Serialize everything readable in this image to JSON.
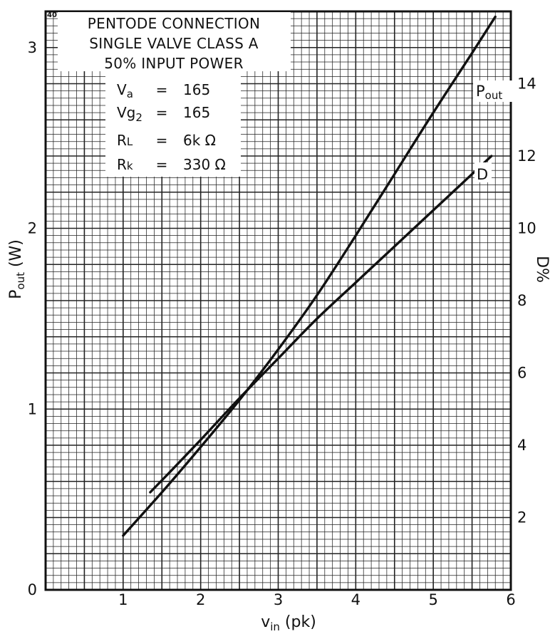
{
  "chart_data": {
    "type": "line",
    "corner_label": "40",
    "xlabel": "v",
    "xlabel_sub": "in",
    "xlabel_suffix": " (pk)",
    "ylabel_left": "P",
    "ylabel_left_sub": "out",
    "ylabel_left_suffix": " (W)",
    "ylabel_right": "D%",
    "xlim": [
      0,
      6
    ],
    "ylim_left": [
      0,
      3.2
    ],
    "ylim_right": [
      0,
      16
    ],
    "xticks": [
      "1",
      "2",
      "3",
      "4",
      "5",
      "6"
    ],
    "yticks_left": [
      "0",
      "1",
      "2",
      "3"
    ],
    "yticks_right": [
      "2",
      "4",
      "6",
      "8",
      "10",
      "12",
      "14"
    ],
    "grid": true,
    "info_box": {
      "heading": [
        "PENTODE CONNECTION",
        "SINGLE VALVE CLASS A",
        "50% INPUT POWER"
      ],
      "params": [
        {
          "name": "V",
          "sub": "a",
          "eq": "=",
          "value": "165"
        },
        {
          "name": "Vg",
          "sub": "2",
          "eq": "=",
          "value": "165"
        },
        {
          "name": "R",
          "sub": "L",
          "eq": "=",
          "value": "6k Ω"
        },
        {
          "name": "R",
          "sub": "k",
          "eq": "=",
          "value": "330 Ω"
        }
      ]
    },
    "series": [
      {
        "name": "P",
        "name_sub": "out",
        "axis": "left",
        "x": [
          1.0,
          1.5,
          2.0,
          2.5,
          3.0,
          3.5,
          4.0,
          4.5,
          5.0,
          5.5,
          5.8
        ],
        "y": [
          0.3,
          0.54,
          0.79,
          1.05,
          1.33,
          1.63,
          1.96,
          2.3,
          2.64,
          2.97,
          3.17
        ]
      },
      {
        "name": "D",
        "axis": "right",
        "x": [
          1.35,
          1.6,
          2.0,
          2.5,
          3.0,
          3.5,
          4.0,
          4.5,
          5.0,
          5.5,
          5.75
        ],
        "y": [
          2.7,
          3.25,
          4.15,
          5.3,
          6.4,
          7.5,
          8.5,
          9.5,
          10.5,
          11.5,
          12.0
        ]
      }
    ]
  }
}
